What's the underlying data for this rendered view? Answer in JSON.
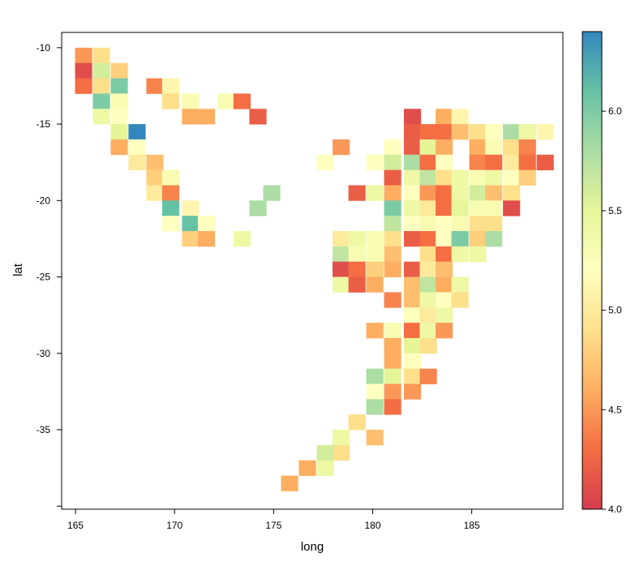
{
  "chart_data": {
    "type": "heatmap",
    "title": "",
    "xlabel": "long",
    "ylabel": "lat",
    "xlim": [
      164.3,
      189.6
    ],
    "ylim": [
      -40.2,
      -9.0
    ],
    "x_ticks": [
      165,
      170,
      175,
      180,
      185
    ],
    "x_tick_labels": [
      "165",
      "170",
      "175",
      "180",
      "185"
    ],
    "y_ticks": [
      -10,
      -15,
      -20,
      -25,
      -30,
      -35,
      -40
    ],
    "y_tick_labels": [
      "-10",
      "-15",
      "-20",
      "-25",
      "-30",
      "-35",
      ""
    ],
    "cell_width": 0.85,
    "cell_height": 1.0,
    "legend": {
      "placement": "right",
      "min": 4.0,
      "max": 6.4,
      "ticks": [
        4.0,
        4.5,
        5.0,
        5.5,
        6.0
      ],
      "tick_labels": [
        "4.0",
        "4.5",
        "5.0",
        "5.5",
        "6.0"
      ]
    },
    "colorscale": [
      [
        4.0,
        "#D53E4F"
      ],
      [
        4.3,
        "#F46D43"
      ],
      [
        4.6,
        "#FDAE61"
      ],
      [
        4.9,
        "#FEE08B"
      ],
      [
        5.2,
        "#FFFFBF"
      ],
      [
        5.5,
        "#E6F598"
      ],
      [
        5.8,
        "#ABDDA4"
      ],
      [
        6.1,
        "#66C2A5"
      ],
      [
        6.4,
        "#3288BD"
      ]
    ],
    "cells": [
      [
        165.4,
        -10.5,
        4.5
      ],
      [
        166.3,
        -10.5,
        4.9
      ],
      [
        165.4,
        -11.5,
        4.1
      ],
      [
        166.3,
        -11.5,
        5.6
      ],
      [
        167.2,
        -11.5,
        4.8
      ],
      [
        165.4,
        -12.5,
        4.3
      ],
      [
        166.3,
        -12.5,
        4.9
      ],
      [
        167.2,
        -12.5,
        6.0
      ],
      [
        169.0,
        -12.5,
        4.4
      ],
      [
        169.8,
        -12.5,
        5.1
      ],
      [
        166.3,
        -13.5,
        6.0
      ],
      [
        167.2,
        -13.5,
        5.3
      ],
      [
        169.8,
        -13.5,
        4.9
      ],
      [
        170.8,
        -13.5,
        5.3
      ],
      [
        172.6,
        -13.5,
        5.3
      ],
      [
        173.4,
        -13.5,
        4.3
      ],
      [
        166.3,
        -14.5,
        5.4
      ],
      [
        167.2,
        -14.5,
        5.2
      ],
      [
        170.8,
        -14.5,
        4.6
      ],
      [
        171.6,
        -14.5,
        4.6
      ],
      [
        174.2,
        -14.5,
        4.2
      ],
      [
        167.2,
        -15.5,
        5.5
      ],
      [
        168.1,
        -15.5,
        6.4
      ],
      [
        167.2,
        -16.5,
        4.6
      ],
      [
        168.1,
        -16.5,
        5.2
      ],
      [
        168.1,
        -17.5,
        5.0
      ],
      [
        169.0,
        -17.5,
        4.7
      ],
      [
        169.0,
        -18.5,
        4.8
      ],
      [
        169.8,
        -18.5,
        5.3
      ],
      [
        169.0,
        -19.5,
        5.0
      ],
      [
        169.8,
        -19.5,
        4.4
      ],
      [
        174.9,
        -19.5,
        5.8
      ],
      [
        169.8,
        -20.5,
        6.1
      ],
      [
        170.8,
        -20.5,
        5.1
      ],
      [
        174.2,
        -20.5,
        5.8
      ],
      [
        169.8,
        -21.5,
        5.2
      ],
      [
        170.8,
        -21.5,
        6.1
      ],
      [
        171.6,
        -21.5,
        5.2
      ],
      [
        170.8,
        -22.5,
        4.8
      ],
      [
        171.6,
        -22.5,
        4.6
      ],
      [
        173.4,
        -22.5,
        5.4
      ],
      [
        177.6,
        -17.5,
        5.2
      ],
      [
        178.4,
        -16.5,
        4.5
      ],
      [
        179.2,
        -19.5,
        4.2
      ],
      [
        180.1,
        -19.5,
        5.4
      ],
      [
        178.4,
        -22.5,
        5.0
      ],
      [
        179.2,
        -22.5,
        5.4
      ],
      [
        180.1,
        -22.5,
        5.3
      ],
      [
        178.4,
        -23.5,
        5.7
      ],
      [
        179.2,
        -23.5,
        5.3
      ],
      [
        180.1,
        -23.5,
        5.3
      ],
      [
        178.4,
        -24.5,
        4.1
      ],
      [
        179.2,
        -24.5,
        4.3
      ],
      [
        180.1,
        -24.5,
        4.8
      ],
      [
        178.4,
        -25.5,
        5.4
      ],
      [
        179.2,
        -25.5,
        4.2
      ],
      [
        180.1,
        -25.5,
        4.6
      ],
      [
        180.1,
        -28.5,
        4.6
      ],
      [
        180.1,
        -31.5,
        5.8
      ],
      [
        180.1,
        -32.5,
        5.2
      ],
      [
        180.1,
        -33.5,
        5.8
      ],
      [
        179.2,
        -34.5,
        4.9
      ],
      [
        180.1,
        -35.5,
        4.7
      ],
      [
        178.4,
        -35.5,
        5.4
      ],
      [
        178.4,
        -36.5,
        4.9
      ],
      [
        177.6,
        -36.5,
        5.6
      ],
      [
        177.6,
        -37.5,
        5.4
      ],
      [
        176.7,
        -37.5,
        4.6
      ],
      [
        175.8,
        -38.5,
        4.6
      ],
      [
        182.0,
        -14.5,
        4.1
      ],
      [
        183.6,
        -14.5,
        4.6
      ],
      [
        184.4,
        -14.5,
        5.1
      ],
      [
        182.0,
        -15.5,
        4.2
      ],
      [
        182.8,
        -15.5,
        4.3
      ],
      [
        183.6,
        -15.5,
        4.3
      ],
      [
        184.4,
        -15.5,
        4.7
      ],
      [
        185.3,
        -15.5,
        4.9
      ],
      [
        186.1,
        -15.5,
        5.2
      ],
      [
        187.0,
        -15.5,
        5.8
      ],
      [
        187.8,
        -15.5,
        5.4
      ],
      [
        188.7,
        -15.5,
        5.1
      ],
      [
        181.0,
        -16.5,
        5.2
      ],
      [
        182.0,
        -16.5,
        4.2
      ],
      [
        182.8,
        -16.5,
        5.5
      ],
      [
        183.6,
        -16.5,
        4.6
      ],
      [
        185.3,
        -16.5,
        4.6
      ],
      [
        186.1,
        -16.5,
        5.3
      ],
      [
        187.0,
        -16.5,
        4.9
      ],
      [
        187.8,
        -16.5,
        4.4
      ],
      [
        180.1,
        -17.5,
        5.2
      ],
      [
        181.0,
        -17.5,
        5.6
      ],
      [
        182.0,
        -17.5,
        5.8
      ],
      [
        182.8,
        -17.5,
        4.3
      ],
      [
        183.6,
        -17.5,
        5.2
      ],
      [
        185.3,
        -17.5,
        4.4
      ],
      [
        186.1,
        -17.5,
        4.3
      ],
      [
        187.0,
        -17.5,
        5.0
      ],
      [
        187.8,
        -17.5,
        4.3
      ],
      [
        188.7,
        -17.5,
        4.2
      ],
      [
        181.0,
        -18.5,
        4.2
      ],
      [
        182.0,
        -18.5,
        5.4
      ],
      [
        182.8,
        -18.5,
        5.7
      ],
      [
        183.6,
        -18.5,
        4.9
      ],
      [
        184.4,
        -18.5,
        5.4
      ],
      [
        185.3,
        -18.5,
        5.3
      ],
      [
        186.1,
        -18.5,
        5.4
      ],
      [
        187.0,
        -18.5,
        5.2
      ],
      [
        187.8,
        -18.5,
        4.8
      ],
      [
        181.0,
        -19.5,
        4.6
      ],
      [
        182.0,
        -19.5,
        5.2
      ],
      [
        182.8,
        -19.5,
        4.5
      ],
      [
        183.6,
        -19.5,
        4.3
      ],
      [
        184.4,
        -19.5,
        5.4
      ],
      [
        185.3,
        -19.5,
        5.6
      ],
      [
        186.1,
        -19.5,
        4.7
      ],
      [
        187.0,
        -19.5,
        4.9
      ],
      [
        181.0,
        -20.5,
        6.0
      ],
      [
        182.0,
        -20.5,
        5.4
      ],
      [
        182.8,
        -20.5,
        5.0
      ],
      [
        183.6,
        -20.5,
        4.3
      ],
      [
        184.4,
        -20.5,
        5.5
      ],
      [
        185.3,
        -20.5,
        5.3
      ],
      [
        186.1,
        -20.5,
        5.3
      ],
      [
        187.0,
        -20.5,
        4.1
      ],
      [
        181.0,
        -21.5,
        5.7
      ],
      [
        182.0,
        -21.5,
        5.2
      ],
      [
        182.8,
        -21.5,
        5.3
      ],
      [
        183.6,
        -21.5,
        5.2
      ],
      [
        184.4,
        -21.5,
        5.3
      ],
      [
        185.3,
        -21.5,
        4.9
      ],
      [
        186.1,
        -21.5,
        4.9
      ],
      [
        181.0,
        -22.5,
        4.9
      ],
      [
        182.0,
        -22.5,
        4.2
      ],
      [
        182.8,
        -22.5,
        4.3
      ],
      [
        183.6,
        -22.5,
        5.2
      ],
      [
        184.4,
        -22.5,
        6.0
      ],
      [
        185.3,
        -22.5,
        4.8
      ],
      [
        186.1,
        -22.5,
        5.8
      ],
      [
        181.0,
        -23.5,
        4.7
      ],
      [
        182.8,
        -23.5,
        4.9
      ],
      [
        183.6,
        -23.5,
        4.3
      ],
      [
        184.4,
        -23.5,
        5.4
      ],
      [
        185.3,
        -23.5,
        5.4
      ],
      [
        181.0,
        -24.5,
        4.6
      ],
      [
        182.0,
        -24.5,
        4.2
      ],
      [
        182.8,
        -24.5,
        5.0
      ],
      [
        183.6,
        -24.5,
        4.7
      ],
      [
        182.0,
        -25.5,
        4.7
      ],
      [
        182.8,
        -25.5,
        5.7
      ],
      [
        183.6,
        -25.5,
        4.6
      ],
      [
        184.4,
        -25.5,
        5.4
      ],
      [
        181.0,
        -26.5,
        4.4
      ],
      [
        182.0,
        -26.5,
        4.7
      ],
      [
        182.8,
        -26.5,
        5.4
      ],
      [
        183.6,
        -26.5,
        5.2
      ],
      [
        184.4,
        -26.5,
        4.9
      ],
      [
        182.0,
        -27.5,
        5.2
      ],
      [
        182.8,
        -27.5,
        5.0
      ],
      [
        183.6,
        -27.5,
        5.4
      ],
      [
        181.0,
        -28.5,
        5.3
      ],
      [
        182.0,
        -28.5,
        4.3
      ],
      [
        182.8,
        -28.5,
        5.4
      ],
      [
        183.6,
        -28.5,
        4.5
      ],
      [
        181.0,
        -29.5,
        4.6
      ],
      [
        182.0,
        -29.5,
        5.5
      ],
      [
        182.8,
        -29.5,
        4.9
      ],
      [
        181.0,
        -30.5,
        4.6
      ],
      [
        182.0,
        -30.5,
        5.2
      ],
      [
        181.0,
        -31.5,
        5.5
      ],
      [
        182.0,
        -31.5,
        4.9
      ],
      [
        182.8,
        -31.5,
        4.4
      ],
      [
        181.0,
        -32.5,
        4.5
      ],
      [
        182.0,
        -32.5,
        4.5
      ],
      [
        181.0,
        -33.5,
        4.3
      ]
    ]
  }
}
